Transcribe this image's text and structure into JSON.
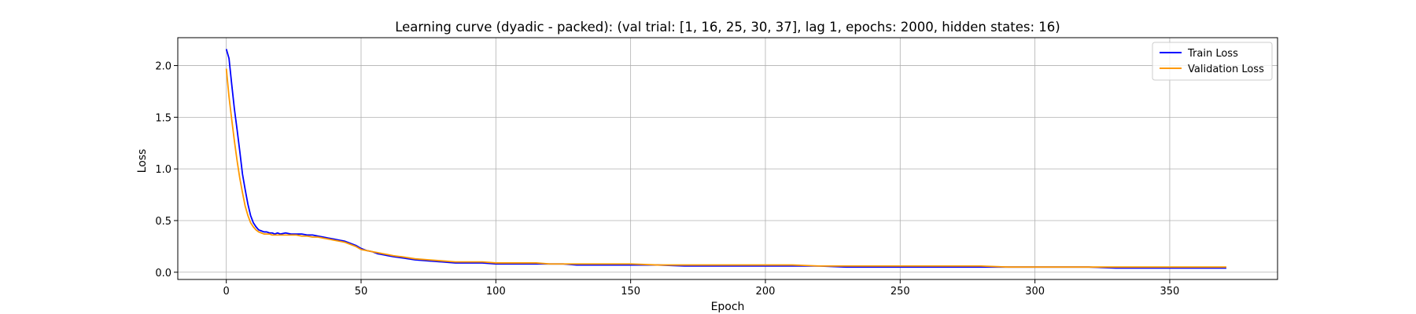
{
  "chart_data": {
    "type": "line",
    "title": "Learning curve (dyadic - packed): (val trial: [1, 16, 25, 30, 37], lag 1, epochs: 2000, hidden states: 16)",
    "xlabel": "Epoch",
    "ylabel": "Loss",
    "xlim": [
      -18,
      390
    ],
    "ylim": [
      -0.07,
      2.27
    ],
    "xticks": [
      0,
      50,
      100,
      150,
      200,
      250,
      300,
      350
    ],
    "yticks": [
      0.0,
      0.5,
      1.0,
      1.5,
      2.0
    ],
    "xtick_labels": [
      "0",
      "50",
      "100",
      "150",
      "200",
      "250",
      "300",
      "350"
    ],
    "ytick_labels": [
      "0.0",
      "0.5",
      "1.0",
      "1.5",
      "2.0"
    ],
    "grid": true,
    "legend_position": "top-right",
    "series": [
      {
        "name": "Train Loss",
        "color": "#0000ff",
        "x": [
          0,
          1,
          2,
          3,
          4,
          5,
          6,
          7,
          8,
          9,
          10,
          11,
          12,
          13,
          14,
          15,
          16,
          17,
          18,
          19,
          20,
          22,
          24,
          26,
          28,
          30,
          32,
          34,
          36,
          38,
          40,
          42,
          44,
          46,
          48,
          50,
          52,
          54,
          56,
          58,
          60,
          62,
          65,
          70,
          75,
          80,
          85,
          90,
          95,
          100,
          105,
          110,
          115,
          120,
          125,
          130,
          140,
          150,
          160,
          170,
          180,
          190,
          200,
          210,
          220,
          230,
          240,
          250,
          260,
          270,
          280,
          290,
          300,
          310,
          320,
          330,
          340,
          350,
          360,
          371
        ],
        "y": [
          2.16,
          2.07,
          1.82,
          1.58,
          1.38,
          1.17,
          0.95,
          0.8,
          0.66,
          0.55,
          0.48,
          0.44,
          0.41,
          0.4,
          0.39,
          0.39,
          0.38,
          0.38,
          0.37,
          0.38,
          0.37,
          0.38,
          0.37,
          0.37,
          0.37,
          0.36,
          0.36,
          0.35,
          0.34,
          0.33,
          0.32,
          0.31,
          0.3,
          0.28,
          0.26,
          0.23,
          0.21,
          0.2,
          0.18,
          0.17,
          0.16,
          0.15,
          0.14,
          0.12,
          0.11,
          0.1,
          0.09,
          0.09,
          0.09,
          0.08,
          0.08,
          0.08,
          0.08,
          0.08,
          0.08,
          0.07,
          0.07,
          0.07,
          0.07,
          0.06,
          0.06,
          0.06,
          0.06,
          0.06,
          0.06,
          0.05,
          0.05,
          0.05,
          0.05,
          0.05,
          0.05,
          0.05,
          0.05,
          0.05,
          0.05,
          0.04,
          0.04,
          0.04,
          0.04,
          0.04
        ]
      },
      {
        "name": "Validation Loss",
        "color": "#ff9900",
        "x": [
          0,
          1,
          2,
          3,
          4,
          5,
          6,
          7,
          8,
          9,
          10,
          11,
          12,
          13,
          14,
          15,
          16,
          17,
          18,
          19,
          20,
          22,
          24,
          26,
          28,
          30,
          32,
          34,
          36,
          38,
          40,
          42,
          44,
          46,
          48,
          50,
          52,
          54,
          56,
          58,
          60,
          62,
          65,
          70,
          75,
          80,
          85,
          90,
          95,
          100,
          105,
          110,
          115,
          120,
          125,
          130,
          140,
          150,
          160,
          170,
          180,
          190,
          200,
          210,
          220,
          230,
          240,
          250,
          260,
          270,
          280,
          290,
          300,
          310,
          320,
          330,
          340,
          350,
          360,
          371
        ],
        "y": [
          1.97,
          1.7,
          1.48,
          1.27,
          1.08,
          0.91,
          0.77,
          0.64,
          0.55,
          0.48,
          0.44,
          0.41,
          0.39,
          0.38,
          0.37,
          0.37,
          0.37,
          0.36,
          0.36,
          0.36,
          0.36,
          0.36,
          0.36,
          0.36,
          0.35,
          0.35,
          0.34,
          0.34,
          0.33,
          0.32,
          0.31,
          0.3,
          0.29,
          0.27,
          0.25,
          0.22,
          0.21,
          0.2,
          0.19,
          0.18,
          0.17,
          0.16,
          0.15,
          0.13,
          0.12,
          0.11,
          0.1,
          0.1,
          0.1,
          0.09,
          0.09,
          0.09,
          0.09,
          0.08,
          0.08,
          0.08,
          0.08,
          0.08,
          0.07,
          0.07,
          0.07,
          0.07,
          0.07,
          0.07,
          0.06,
          0.06,
          0.06,
          0.06,
          0.06,
          0.06,
          0.06,
          0.05,
          0.05,
          0.05,
          0.05,
          0.05,
          0.05,
          0.05,
          0.05,
          0.05
        ]
      }
    ]
  }
}
